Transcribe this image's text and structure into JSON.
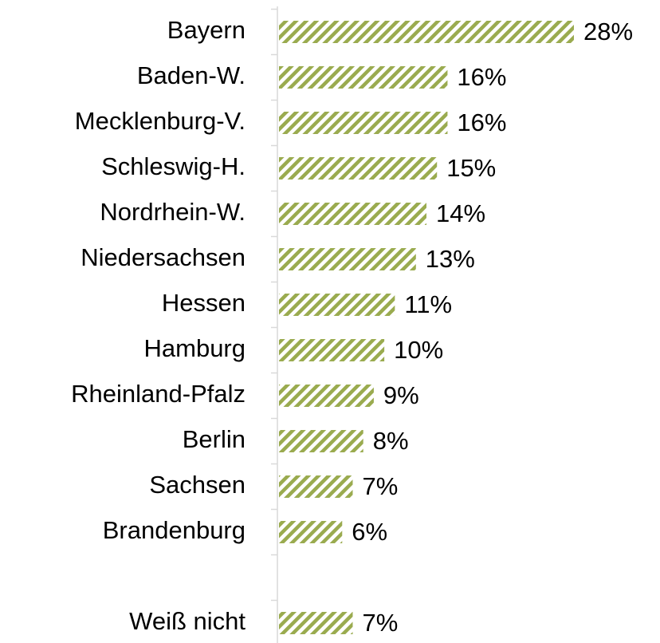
{
  "chart_data": {
    "type": "bar",
    "orientation": "horizontal",
    "categories": [
      "Bayern",
      "Baden-W.",
      "Mecklenburg-V.",
      "Schleswig-H.",
      "Nordrhein-W.",
      "Niedersachsen",
      "Hessen",
      "Hamburg",
      "Rheinland-Pfalz",
      "Berlin",
      "Sachsen",
      "Brandenburg",
      null,
      "Weiß nicht"
    ],
    "values": [
      28,
      16,
      16,
      15,
      14,
      13,
      11,
      10,
      9,
      8,
      7,
      6,
      null,
      7
    ],
    "value_labels": [
      "28%",
      "16%",
      "16%",
      "15%",
      "14%",
      "13%",
      "11%",
      "10%",
      "9%",
      "8%",
      "7%",
      "6%",
      null,
      "7%"
    ],
    "color": "#9aab4f",
    "hatch": true
  }
}
